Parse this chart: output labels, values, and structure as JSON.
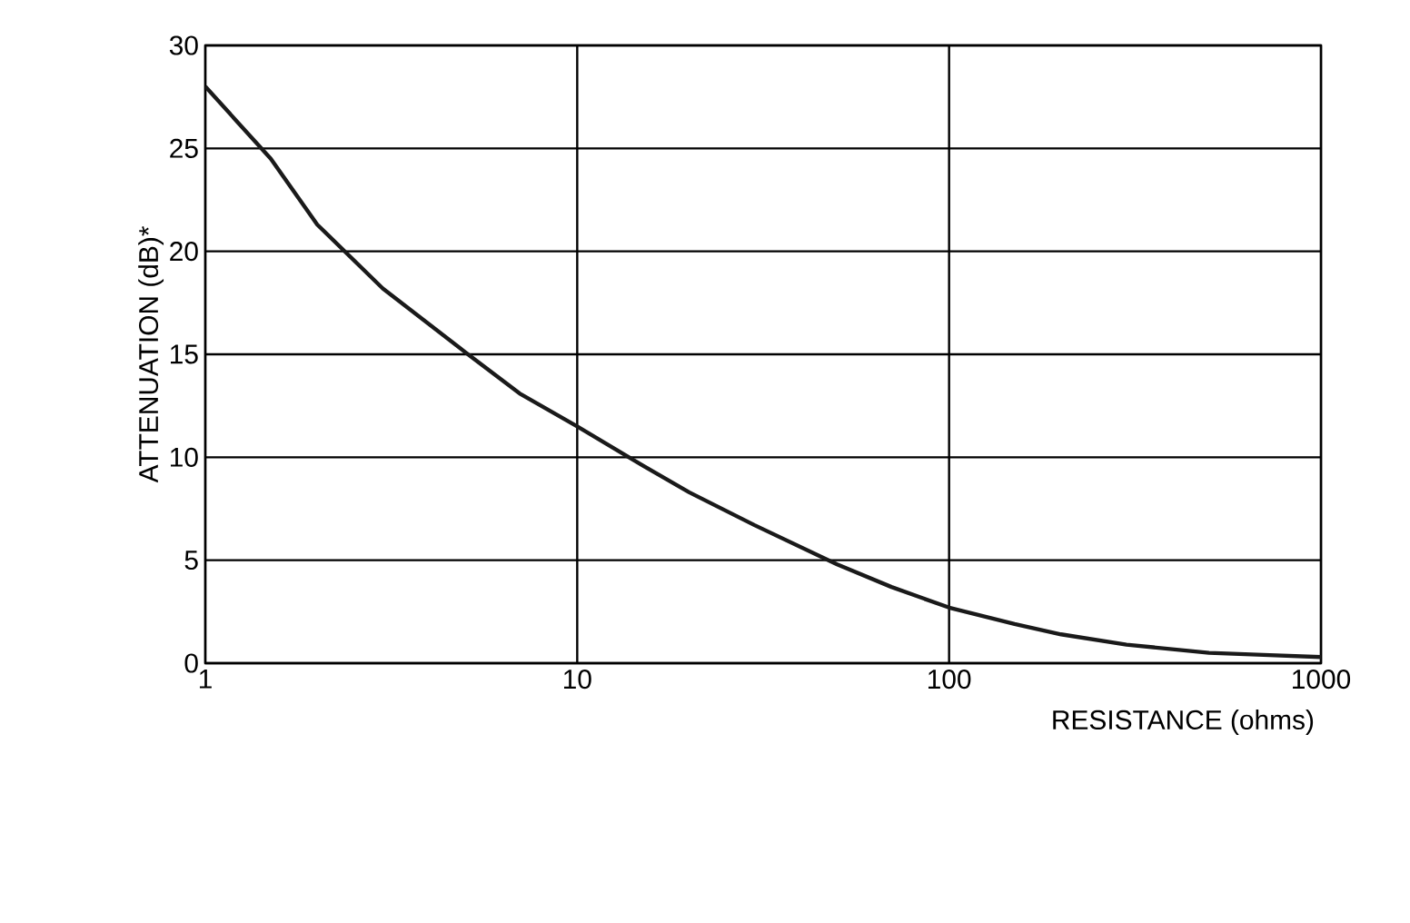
{
  "chart_data": {
    "type": "line",
    "xlabel": "RESISTANCE (ohms)",
    "ylabel": "ATTENUATION  (dB)*",
    "log": "x",
    "x": [
      1,
      1.5,
      2,
      3,
      5,
      7,
      10,
      15,
      20,
      30,
      50,
      70,
      100,
      150,
      200,
      300,
      500,
      700,
      1000
    ],
    "series": [
      {
        "color": "#1a1a1a",
        "values": [
          28,
          24.5,
          21.3,
          18.2,
          15.1,
          13.1,
          11.5,
          9.6,
          8.3,
          6.7,
          4.8,
          3.7,
          2.7,
          1.9,
          1.4,
          0.9,
          0.5,
          0.4,
          0.3
        ]
      }
    ],
    "xlim": [
      1,
      1000
    ],
    "xticks": [
      1,
      10,
      100,
      1000
    ],
    "ylim": [
      0,
      30
    ],
    "yticks": [
      0,
      5,
      10,
      15,
      20,
      25,
      30
    ],
    "grid": true,
    "marker": "none",
    "line_style": "solid"
  }
}
